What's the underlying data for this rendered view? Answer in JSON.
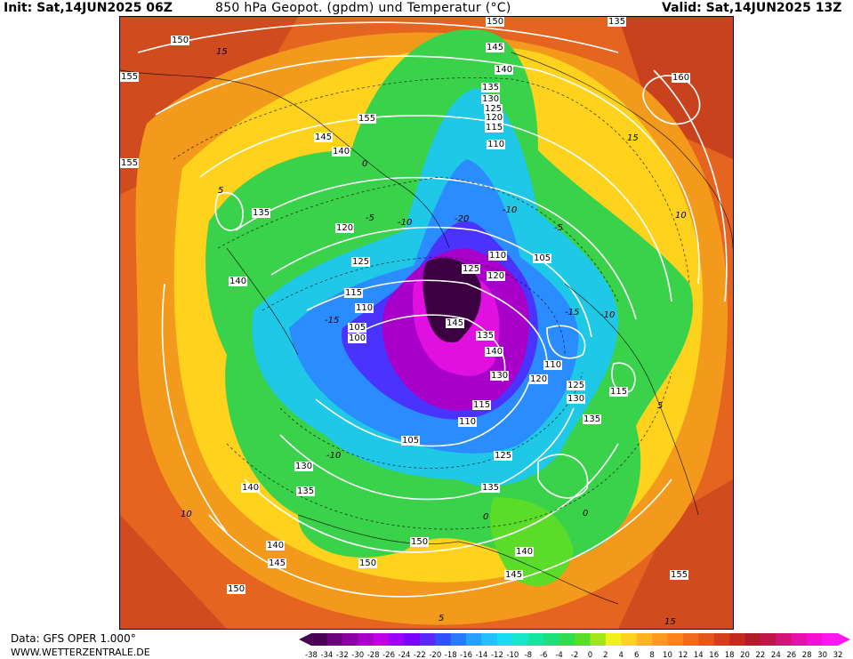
{
  "header": {
    "init": "Init: Sat,14JUN2025 06Z",
    "title": "850 hPa Geopot. (gpdm) und Temperatur (°C)",
    "valid": "Valid: Sat,14JUN2025 13Z"
  },
  "footer": {
    "data_source": "Data: GFS OPER 1.000°",
    "website": "WWW.WETTERZENTRALE.DE"
  },
  "legend": {
    "ticks": [
      "-38",
      "-34",
      "-32",
      "-30",
      "-28",
      "-26",
      "-24",
      "-22",
      "-20",
      "-18",
      "-16",
      "-14",
      "-12",
      "-10",
      "-8",
      "-6",
      "-4",
      "-2",
      "0",
      "2",
      "4",
      "6",
      "8",
      "10",
      "12",
      "14",
      "16",
      "18",
      "20",
      "22",
      "24",
      "26",
      "28",
      "30",
      "32"
    ],
    "colors": [
      "#4a0052",
      "#6a007a",
      "#8a00a0",
      "#a800c8",
      "#c000e6",
      "#9a00ff",
      "#7a00ff",
      "#5a28ff",
      "#3250ff",
      "#2a7aff",
      "#29a0ff",
      "#22c2ff",
      "#18dcf0",
      "#14e8c8",
      "#14e6a0",
      "#1ce07a",
      "#30dc50",
      "#5adc28",
      "#a0e61a",
      "#f0f01a",
      "#ffd21e",
      "#ffb41e",
      "#ff9a1e",
      "#ff821e",
      "#f26a1e",
      "#e4561e",
      "#d4401e",
      "#c42a1e",
      "#b01c28",
      "#c0184a",
      "#d4147a",
      "#e810aa",
      "#f810d2",
      "#ff18f0"
    ]
  },
  "map": {
    "geopotential_labels": [
      "150",
      "155",
      "145",
      "140",
      "135",
      "130",
      "125",
      "120",
      "115",
      "110",
      "105",
      "100",
      "160"
    ],
    "temperature_labels": [
      "15",
      "10",
      "5",
      "0",
      "-5",
      "-10",
      "-15",
      "-20"
    ]
  }
}
